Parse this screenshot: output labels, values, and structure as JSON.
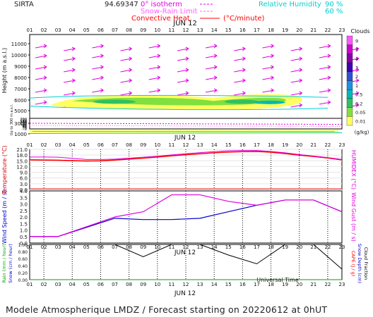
{
  "header": {
    "station": "SIRTA",
    "coord": "94.69347",
    "legend_iso": "0° isotherm",
    "legend_snow": "Snow-Rain Limit",
    "legend_conv": "Convective Heat.",
    "legend_conv_unit": "(°C/minute)",
    "legend_rh": "Relative Humidity",
    "rh_90": "90 %",
    "rh_60": "60 %",
    "colors": {
      "iso": "#e000e0",
      "snow": "#ff60ff",
      "conv": "#ff0000",
      "rh": "#00d0d0"
    }
  },
  "hours": [
    "01",
    "02",
    "03",
    "04",
    "05",
    "06",
    "07",
    "08",
    "09",
    "10",
    "11",
    "12",
    "13",
    "14",
    "15",
    "16",
    "17",
    "18",
    "19",
    "20",
    "21",
    "22",
    "23"
  ],
  "date_label": "JUN 12",
  "footer": {
    "text": "Modele Atmospherique LMDZ / Forecast starting on 20220612 at 0hUT",
    "ut_label": "Universal Time"
  },
  "chart_data": [
    {
      "type": "heatmap",
      "name": "clouds",
      "ylabel": "Height (m a.s.l.)",
      "ylabel_low": "Up to 300 m a.s.l.",
      "yticks_upper": [
        1000,
        3000,
        5000,
        6000,
        7000,
        8000,
        9000,
        10000,
        11000
      ],
      "yticks_lower": [
        0,
        20,
        40,
        60,
        80,
        100,
        120,
        140,
        160,
        180,
        200
      ],
      "colorbar_title": "Clouds",
      "colorbar_unit": "(g/kg)",
      "colorbar_labels": [
        "9",
        "5",
        "4",
        "3",
        "2",
        "1",
        "0.5",
        "0.2",
        "0.05",
        "0.01"
      ],
      "colorbar_colors": [
        "#ff55ff",
        "#d000d0",
        "#8800a8",
        "#4000b0",
        "#3050d0",
        "#2090e0",
        "#00b8b8",
        "#30c060",
        "#80e040",
        "#ffff60"
      ],
      "layers": [
        {
          "base_m": 5500,
          "top_m": 6300,
          "max": "1-2"
        },
        {
          "base_m": 1200,
          "top_m": 1700,
          "max": "1"
        }
      ]
    },
    {
      "type": "line",
      "name": "temperature",
      "ylabel": "Temperature (°C)",
      "ylabel_right": "HUMIDEX (°C)",
      "ylim": [
        0,
        21
      ],
      "yticks": [
        0.0,
        3.0,
        6.0,
        9.0,
        12.0,
        15.0,
        18.0,
        21.0
      ],
      "series": [
        {
          "name": "Temperature",
          "color": "#ff0000",
          "values": [
            15.5,
            15.4,
            15.3,
            15.1,
            14.9,
            15.0,
            15.4,
            15.9,
            16.4,
            17.0,
            17.6,
            18.2,
            18.7,
            19.2,
            19.6,
            19.8,
            19.9,
            19.5,
            18.8,
            18.0,
            17.3,
            16.5,
            15.5
          ]
        },
        {
          "name": "HUMIDEX",
          "color": "#e000e0",
          "values": [
            17.0,
            17.0,
            16.9,
            16.3,
            15.7,
            15.7,
            15.9,
            16.4,
            16.9,
            17.4,
            18.1,
            18.7,
            19.3,
            19.8,
            20.3,
            20.4,
            20.4,
            19.9,
            19.2,
            18.3,
            17.5,
            16.7,
            15.7
          ]
        }
      ],
      "hline": {
        "value": 0.3,
        "color": "#ff0000"
      }
    },
    {
      "type": "line",
      "name": "wind",
      "ylabel": "Wind Speed (m / s)",
      "ylabel_right": "Wind Gust (m / s)",
      "ylim": [
        0,
        4.0
      ],
      "yticks": [
        0.0,
        0.5,
        1.0,
        1.5,
        2.0,
        2.5,
        3.0,
        3.5,
        4.0
      ],
      "series": [
        {
          "name": "Wind Speed",
          "color": "#0000cc",
          "x": [
            "01",
            "03",
            "07",
            "09",
            "11",
            "13",
            "15",
            "17",
            "19",
            "21",
            "23"
          ],
          "values": [
            0.5,
            0.5,
            1.9,
            1.8,
            1.8,
            1.9,
            2.4,
            2.9,
            3.3,
            3.3,
            2.4
          ]
        },
        {
          "name": "Wind Gust",
          "color": "#e000e0",
          "x": [
            "01",
            "03",
            "07",
            "09",
            "11",
            "13",
            "15",
            "17",
            "19",
            "21",
            "23"
          ],
          "values": [
            0.5,
            0.5,
            2.0,
            2.4,
            3.7,
            3.7,
            3.2,
            2.9,
            3.3,
            3.3,
            2.4
          ]
        }
      ]
    },
    {
      "type": "line",
      "name": "precipitation",
      "ylabel_left1": "Rain (mm / hour)",
      "ylabel_left2": "Snow (cm / hour)",
      "ylabel_right1": "CAPE (J / g)",
      "ylabel_right2": "Snow Depth (cm)",
      "ylabel_right3": "Cloud Fraction",
      "ylim": [
        0,
        1.0
      ],
      "yticks": [
        0.0,
        0.2,
        0.4,
        0.6,
        0.8,
        1.0
      ],
      "series": [
        {
          "name": "Cloud Fraction",
          "color": "#000000",
          "x": [
            "01",
            "03",
            "07",
            "09",
            "11",
            "13",
            "15",
            "17",
            "19",
            "21",
            "23"
          ],
          "values": [
            1.0,
            1.0,
            1.0,
            0.65,
            1.0,
            1.0,
            0.7,
            0.45,
            1.0,
            1.0,
            0.3
          ]
        },
        {
          "name": "Rain",
          "color": "#00a000",
          "values": [
            0,
            0,
            0,
            0,
            0,
            0,
            0,
            0,
            0,
            0,
            0,
            0,
            0,
            0,
            0,
            0,
            0,
            0,
            0,
            0,
            0,
            0,
            0
          ]
        }
      ]
    }
  ]
}
